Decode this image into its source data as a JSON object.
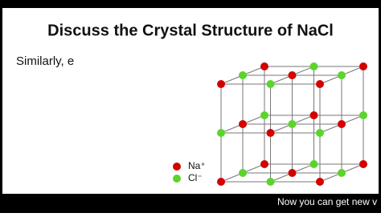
{
  "slide": {
    "title": "Discuss the Crystal Structure of NaCl",
    "text": "Similarly, e",
    "legend": [
      {
        "label": "Na⁺"
      },
      {
        "label": "Cl⁻"
      }
    ]
  },
  "caption": "Now you can get new v"
}
